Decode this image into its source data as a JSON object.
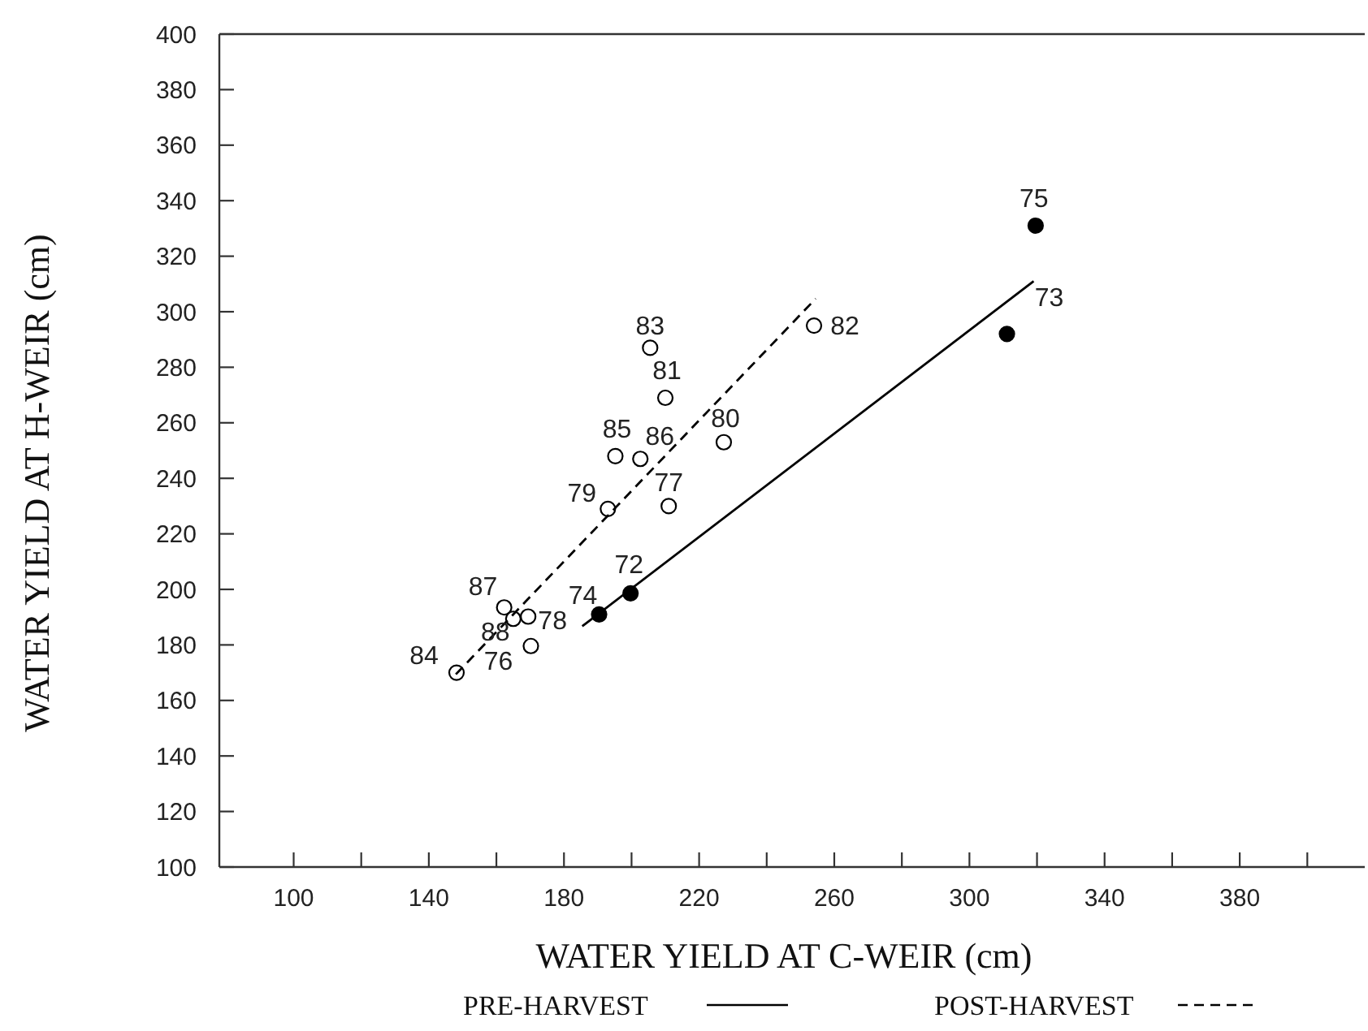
{
  "chart_data": {
    "type": "scatter",
    "xlabel": "WATER YIELD AT C-WEIR (cm)",
    "ylabel": "WATER YIELD AT H-WEIR (cm)",
    "xlim": [
      78,
      417
    ],
    "ylim": [
      100,
      400
    ],
    "xticks": [
      100,
      {
        "value": 120,
        "label": null
      },
      140,
      {
        "value": 160,
        "label": null
      },
      180,
      {
        "value": 200,
        "label": null
      },
      220,
      {
        "value": 240,
        "label": null
      },
      260,
      {
        "value": 280,
        "label": null
      },
      300,
      {
        "value": 320,
        "label": null
      },
      340,
      {
        "value": 360,
        "label": null
      },
      380,
      {
        "value": 400,
        "label": null
      }
    ],
    "yticks": [
      100,
      120,
      140,
      160,
      180,
      200,
      220,
      240,
      260,
      280,
      300,
      320,
      340,
      360,
      380,
      400
    ],
    "grid": false,
    "legend": "bottom",
    "marker": "circle",
    "series": [
      {
        "color": "#000000",
        "x": [
          199.7,
          311.1,
          190.4,
          319.6
        ],
        "values": [
          198.6,
          292,
          191,
          331
        ]
      },
      {
        "color": "#ffffff",
        "x": [
          254,
          205.5,
          210,
          227.3,
          195.2,
          202.6,
          193,
          211,
          162.3,
          165,
          169.4,
          170.2,
          148.2
        ],
        "values": [
          295,
          287,
          269,
          253,
          248,
          247,
          229,
          230,
          193.5,
          189.4,
          190.2,
          179.6,
          170
        ]
      },
      {
        "type": "line",
        "name": "PRE-HARVEST",
        "color": "#000000",
        "line_style": "solid",
        "marker": "none",
        "x": [
          185.4,
          319
        ],
        "values": [
          186.7,
          311
        ]
      },
      {
        "type": "line",
        "name": "POST-HARVEST",
        "color": "#000000",
        "line_style": "dashed",
        "marker": "none",
        "x": [
          148,
          254.5
        ],
        "values": [
          169.4,
          304.7
        ]
      }
    ],
    "annotations": [
      {
        "text": "72",
        "x": 199.7,
        "y": 198.6
      },
      {
        "text": "73",
        "x": 311.1,
        "y": 292
      },
      {
        "text": "74",
        "x": 190.4,
        "y": 191
      },
      {
        "text": "75",
        "x": 319.6,
        "y": 331
      },
      {
        "text": "76",
        "x": 170.2,
        "y": 179.6
      },
      {
        "text": "77",
        "x": 211,
        "y": 230
      },
      {
        "text": "78",
        "x": 169.4,
        "y": 190.2
      },
      {
        "text": "79",
        "x": 193,
        "y": 229
      },
      {
        "text": "80",
        "x": 227.3,
        "y": 253
      },
      {
        "text": "81",
        "x": 210,
        "y": 269
      },
      {
        "text": "82",
        "x": 254,
        "y": 295
      },
      {
        "text": "83",
        "x": 205.5,
        "y": 287
      },
      {
        "text": "84",
        "x": 148.2,
        "y": 170
      },
      {
        "text": "85",
        "x": 195.2,
        "y": 248
      },
      {
        "text": "86",
        "x": 202.6,
        "y": 247
      },
      {
        "text": "87",
        "x": 162.3,
        "y": 193.5
      },
      {
        "text": "88",
        "x": 165,
        "y": 189.4
      }
    ]
  }
}
